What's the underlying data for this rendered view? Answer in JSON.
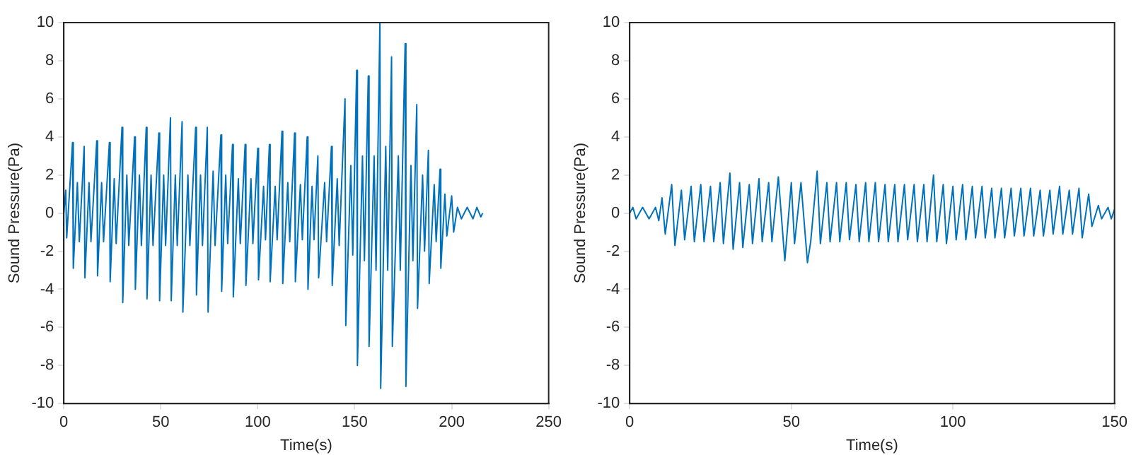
{
  "chart_data": [
    {
      "type": "line",
      "xlabel": "Time(s)",
      "ylabel": "Sound Pressure(Pa)",
      "xlim": [
        0,
        250
      ],
      "xticks": [
        0,
        50,
        100,
        150,
        200,
        250
      ],
      "ylim": [
        -10,
        10
      ],
      "yticks": [
        -10,
        -8,
        -6,
        -4,
        -2,
        0,
        2,
        4,
        6,
        8,
        10
      ],
      "grid": false,
      "legend": false,
      "series": [
        {
          "color": "#0072bd",
          "x": [
            0,
            1,
            1.5,
            4.5,
            4.9,
            7,
            8,
            10.5,
            10.9,
            13,
            14,
            17,
            17.4,
            19.5,
            20.5,
            23.5,
            23.9,
            26,
            27,
            30,
            30.4,
            32.5,
            33.5,
            36.5,
            36.9,
            39,
            40,
            42.5,
            42.9,
            45,
            46,
            49,
            49.4,
            51.5,
            52.5,
            55,
            55.4,
            57.5,
            58.5,
            61,
            61.4,
            64,
            65,
            68,
            68.4,
            70.5,
            71.5,
            74,
            74.4,
            77,
            78,
            81,
            81.4,
            83.5,
            84.5,
            87,
            87.4,
            90,
            91,
            93.5,
            93.9,
            96.5,
            97.5,
            100,
            100.4,
            103,
            104,
            106,
            106.4,
            109,
            110,
            112.5,
            112.9,
            115.5,
            116.5,
            119,
            119.4,
            122,
            123,
            125.5,
            125.9,
            128,
            129,
            131,
            131.4,
            134.5,
            135.5,
            138,
            138.4,
            141,
            142,
            145,
            145.4,
            148,
            149,
            151,
            151.4,
            154,
            155,
            157,
            157.4,
            160,
            161,
            163,
            163.4,
            166,
            167,
            169,
            169.4,
            172.5,
            173.5,
            176,
            176.4,
            179,
            180,
            182,
            182.4,
            185,
            186,
            188,
            188.4,
            191,
            192,
            194,
            194.4,
            196.5,
            197.5,
            200,
            201,
            203,
            205,
            208,
            211,
            213,
            215,
            216
          ],
          "values": [
            0,
            1.2,
            -1.3,
            3.7,
            -2.9,
            1.6,
            -1.5,
            3.5,
            -3.4,
            1.6,
            -1.5,
            3.8,
            -3.3,
            1.6,
            -1.5,
            3.7,
            -3.6,
            1.8,
            -1.6,
            4.5,
            -4.7,
            2.0,
            -1.7,
            4.0,
            -4.0,
            2.0,
            -1.7,
            4.5,
            -4.5,
            2.0,
            -1.7,
            4.2,
            -4.6,
            2.0,
            -1.7,
            5.0,
            -4.6,
            2.0,
            -1.7,
            4.8,
            -5.2,
            2.0,
            -1.7,
            4.5,
            -4.3,
            2.0,
            -1.7,
            4.5,
            -5.2,
            2.2,
            -1.7,
            4.1,
            -4.1,
            2.0,
            -1.6,
            3.6,
            -4.4,
            1.8,
            -1.6,
            3.6,
            -3.8,
            1.8,
            -1.6,
            3.4,
            -3.5,
            1.4,
            -1.4,
            3.6,
            -3.6,
            1.4,
            -1.4,
            4.3,
            -3.7,
            1.6,
            -1.5,
            4.2,
            -3.6,
            1.5,
            -1.4,
            4.0,
            -4.0,
            1.4,
            -1.4,
            3.0,
            -3.4,
            1.6,
            -1.5,
            3.5,
            -3.8,
            1.8,
            -1.7,
            6.0,
            -5.9,
            2.5,
            -2.2,
            7.5,
            -8.0,
            3.0,
            -2.5,
            7.2,
            -7.0,
            3.0,
            -3.0,
            10.0,
            -9.2,
            3.5,
            -3.0,
            8.2,
            -7.0,
            3.0,
            -3.0,
            8.9,
            -9.1,
            2.5,
            -2.5,
            5.7,
            -5.0,
            2.0,
            -2.0,
            3.3,
            -3.7,
            1.5,
            -1.5,
            2.3,
            -2.9,
            1.0,
            -1.2,
            0.9,
            -1.0,
            0.3,
            -0.3,
            0.3,
            -0.3,
            0.3,
            -0.2,
            0
          ]
        }
      ]
    },
    {
      "type": "line",
      "xlabel": "Time(s)",
      "ylabel": "Sound Pressure(Pa)",
      "xlim": [
        0,
        150
      ],
      "xticks": [
        0,
        50,
        100,
        150
      ],
      "ylim": [
        -10,
        10
      ],
      "yticks": [
        -10,
        -8,
        -6,
        -4,
        -2,
        0,
        2,
        4,
        6,
        8,
        10
      ],
      "grid": false,
      "legend": false,
      "series": [
        {
          "color": "#0072bd",
          "x": [
            0,
            1,
            2,
            4,
            6,
            8,
            9,
            10,
            11,
            13,
            14,
            16,
            17,
            19,
            20,
            22,
            23,
            25,
            26,
            28,
            29,
            31,
            32,
            34,
            35,
            37,
            38,
            40,
            41,
            43,
            44,
            46,
            48,
            50,
            51,
            53,
            55,
            56,
            58,
            59,
            61,
            62,
            64,
            65,
            67,
            68,
            70,
            71,
            73,
            74,
            76,
            77,
            79,
            80,
            82,
            83,
            85,
            86,
            88,
            89,
            91,
            92,
            94,
            95,
            97,
            98,
            100,
            101,
            103,
            104,
            106,
            107,
            109,
            110,
            112,
            113,
            115,
            116,
            118,
            119,
            121,
            122,
            124,
            125,
            127,
            128,
            130,
            131,
            133,
            134,
            136,
            137,
            139,
            140,
            142,
            143,
            145,
            146,
            148,
            149,
            150
          ],
          "values": [
            0,
            0.3,
            -0.3,
            0.3,
            -0.3,
            0.3,
            -0.4,
            0.8,
            -1.1,
            1.5,
            -1.7,
            1.2,
            -1.4,
            1.4,
            -1.5,
            1.5,
            -1.5,
            1.4,
            -1.5,
            1.6,
            -1.6,
            2.1,
            -1.9,
            1.6,
            -1.8,
            1.5,
            -1.6,
            1.8,
            -1.5,
            1.6,
            -1.5,
            1.9,
            -2.5,
            1.6,
            -1.6,
            1.6,
            -2.6,
            -1.5,
            2.2,
            -1.6,
            1.6,
            -1.5,
            1.6,
            -1.5,
            1.6,
            -1.4,
            1.5,
            -1.5,
            1.6,
            -1.5,
            1.6,
            -1.5,
            1.5,
            -1.5,
            1.5,
            -1.5,
            1.5,
            -1.4,
            1.5,
            -1.5,
            1.5,
            -1.5,
            2.0,
            -1.5,
            1.5,
            -1.6,
            1.4,
            -1.4,
            1.5,
            -1.4,
            1.4,
            -1.3,
            1.4,
            -1.3,
            1.3,
            -1.3,
            1.3,
            -1.3,
            1.3,
            -1.2,
            1.3,
            -1.2,
            1.3,
            -1.2,
            1.2,
            -1.2,
            1.2,
            -1.1,
            1.4,
            -1.1,
            1.2,
            -1.1,
            1.3,
            -1.3,
            1.0,
            -0.7,
            0.4,
            -0.3,
            0.3,
            -0.3,
            0.2
          ]
        }
      ]
    }
  ]
}
